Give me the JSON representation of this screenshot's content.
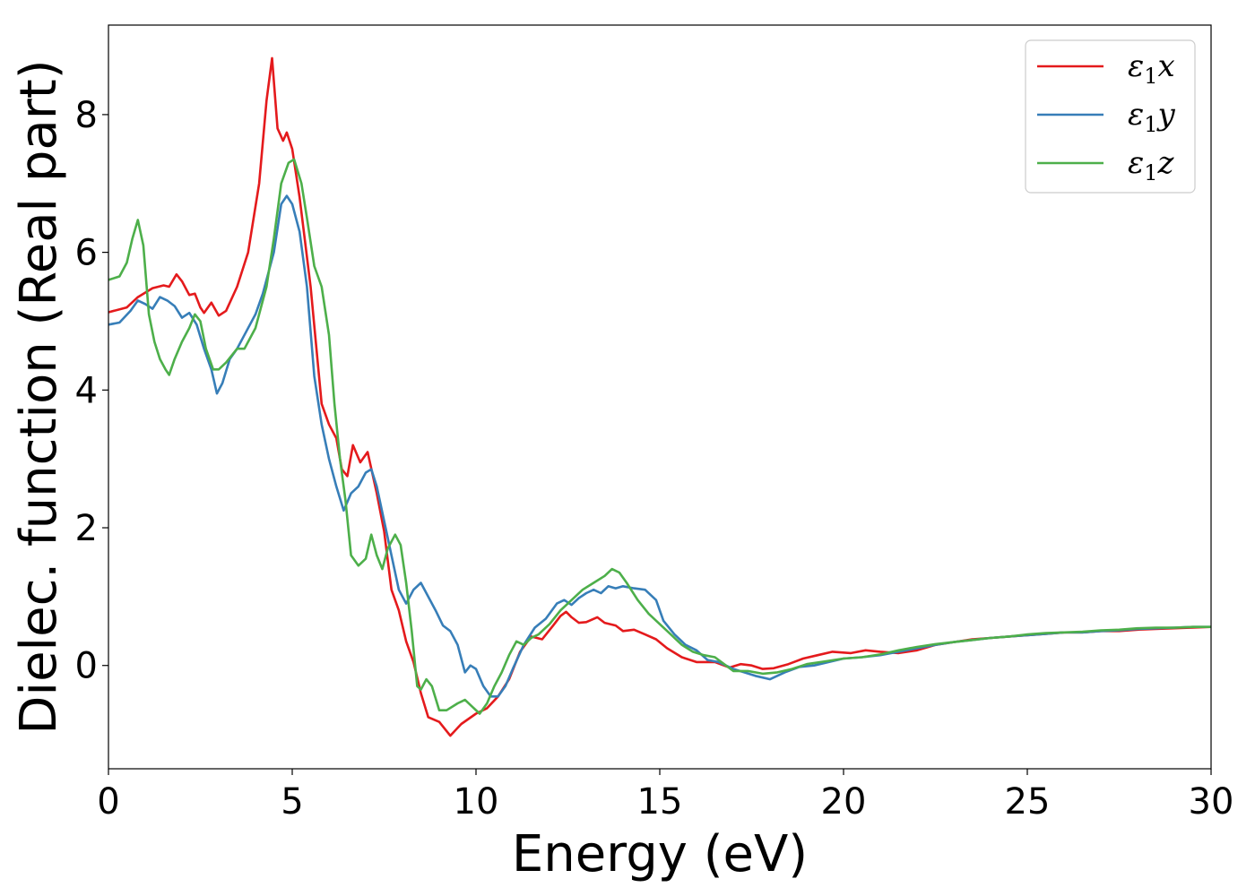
{
  "chart_data": {
    "type": "line",
    "xlabel": "Energy (eV)",
    "ylabel": "Dielec. function (Real part)",
    "xlim": [
      0,
      30
    ],
    "ylim": [
      -1.5,
      9.3
    ],
    "xticks": [
      0,
      5,
      10,
      15,
      20,
      25,
      30
    ],
    "yticks": [
      0,
      2,
      4,
      6,
      8
    ],
    "legend_position": "top-right",
    "series": [
      {
        "name": "ε1x",
        "legend": {
          "sym": "ε",
          "sub": "1",
          "axis": "x"
        },
        "color": "#e41a1c",
        "points": [
          [
            0,
            5.13
          ],
          [
            0.5,
            5.2
          ],
          [
            0.8,
            5.35
          ],
          [
            1.2,
            5.48
          ],
          [
            1.5,
            5.52
          ],
          [
            1.65,
            5.5
          ],
          [
            1.85,
            5.68
          ],
          [
            2.0,
            5.58
          ],
          [
            2.2,
            5.38
          ],
          [
            2.35,
            5.4
          ],
          [
            2.5,
            5.2
          ],
          [
            2.6,
            5.12
          ],
          [
            2.8,
            5.27
          ],
          [
            3.0,
            5.08
          ],
          [
            3.2,
            5.15
          ],
          [
            3.5,
            5.5
          ],
          [
            3.8,
            6.0
          ],
          [
            4.1,
            7.0
          ],
          [
            4.3,
            8.2
          ],
          [
            4.45,
            8.82
          ],
          [
            4.6,
            7.8
          ],
          [
            4.75,
            7.62
          ],
          [
            4.85,
            7.74
          ],
          [
            5.0,
            7.5
          ],
          [
            5.2,
            6.8
          ],
          [
            5.5,
            5.5
          ],
          [
            5.8,
            3.8
          ],
          [
            6.0,
            3.5
          ],
          [
            6.2,
            3.3
          ],
          [
            6.35,
            2.85
          ],
          [
            6.5,
            2.75
          ],
          [
            6.65,
            3.2
          ],
          [
            6.85,
            2.95
          ],
          [
            7.05,
            3.1
          ],
          [
            7.3,
            2.5
          ],
          [
            7.5,
            1.95
          ],
          [
            7.7,
            1.1
          ],
          [
            7.9,
            0.8
          ],
          [
            8.1,
            0.35
          ],
          [
            8.3,
            0.05
          ],
          [
            8.5,
            -0.4
          ],
          [
            8.7,
            -0.75
          ],
          [
            9.0,
            -0.82
          ],
          [
            9.3,
            -1.02
          ],
          [
            9.6,
            -0.85
          ],
          [
            10.0,
            -0.7
          ],
          [
            10.3,
            -0.62
          ],
          [
            10.6,
            -0.45
          ],
          [
            10.9,
            -0.2
          ],
          [
            11.2,
            0.2
          ],
          [
            11.5,
            0.42
          ],
          [
            11.8,
            0.38
          ],
          [
            12.1,
            0.58
          ],
          [
            12.3,
            0.72
          ],
          [
            12.45,
            0.78
          ],
          [
            12.6,
            0.7
          ],
          [
            12.8,
            0.62
          ],
          [
            13.0,
            0.63
          ],
          [
            13.3,
            0.7
          ],
          [
            13.5,
            0.62
          ],
          [
            13.8,
            0.58
          ],
          [
            14.0,
            0.5
          ],
          [
            14.3,
            0.52
          ],
          [
            14.6,
            0.45
          ],
          [
            14.9,
            0.38
          ],
          [
            15.2,
            0.25
          ],
          [
            15.6,
            0.12
          ],
          [
            16.0,
            0.05
          ],
          [
            16.5,
            0.05
          ],
          [
            16.9,
            -0.03
          ],
          [
            17.2,
            0.02
          ],
          [
            17.5,
            0.0
          ],
          [
            17.8,
            -0.05
          ],
          [
            18.1,
            -0.04
          ],
          [
            18.5,
            0.02
          ],
          [
            18.9,
            0.1
          ],
          [
            19.3,
            0.15
          ],
          [
            19.7,
            0.2
          ],
          [
            20.2,
            0.18
          ],
          [
            20.6,
            0.22
          ],
          [
            21.0,
            0.2
          ],
          [
            21.5,
            0.18
          ],
          [
            22.0,
            0.22
          ],
          [
            22.5,
            0.3
          ],
          [
            23.0,
            0.34
          ],
          [
            23.5,
            0.38
          ],
          [
            24.0,
            0.4
          ],
          [
            24.5,
            0.42
          ],
          [
            25.0,
            0.44
          ],
          [
            25.5,
            0.46
          ],
          [
            26.0,
            0.48
          ],
          [
            26.5,
            0.48
          ],
          [
            27.0,
            0.5
          ],
          [
            27.5,
            0.5
          ],
          [
            28.0,
            0.52
          ],
          [
            28.5,
            0.53
          ],
          [
            29.0,
            0.54
          ],
          [
            29.5,
            0.55
          ],
          [
            30.0,
            0.56
          ]
        ]
      },
      {
        "name": "ε1y",
        "legend": {
          "sym": "ε",
          "sub": "1",
          "axis": "y"
        },
        "color": "#377eb8",
        "points": [
          [
            0,
            4.95
          ],
          [
            0.3,
            4.98
          ],
          [
            0.6,
            5.15
          ],
          [
            0.8,
            5.3
          ],
          [
            1.0,
            5.25
          ],
          [
            1.2,
            5.18
          ],
          [
            1.4,
            5.35
          ],
          [
            1.6,
            5.3
          ],
          [
            1.8,
            5.22
          ],
          [
            2.0,
            5.05
          ],
          [
            2.2,
            5.12
          ],
          [
            2.4,
            4.95
          ],
          [
            2.6,
            4.6
          ],
          [
            2.8,
            4.3
          ],
          [
            2.95,
            3.95
          ],
          [
            3.1,
            4.1
          ],
          [
            3.3,
            4.45
          ],
          [
            3.5,
            4.6
          ],
          [
            3.7,
            4.8
          ],
          [
            4.0,
            5.1
          ],
          [
            4.2,
            5.4
          ],
          [
            4.5,
            6.0
          ],
          [
            4.7,
            6.7
          ],
          [
            4.85,
            6.82
          ],
          [
            5.0,
            6.7
          ],
          [
            5.2,
            6.3
          ],
          [
            5.4,
            5.5
          ],
          [
            5.6,
            4.2
          ],
          [
            5.8,
            3.5
          ],
          [
            6.0,
            3.0
          ],
          [
            6.2,
            2.6
          ],
          [
            6.4,
            2.25
          ],
          [
            6.6,
            2.5
          ],
          [
            6.8,
            2.6
          ],
          [
            7.0,
            2.8
          ],
          [
            7.15,
            2.85
          ],
          [
            7.3,
            2.6
          ],
          [
            7.5,
            2.1
          ],
          [
            7.7,
            1.6
          ],
          [
            7.9,
            1.1
          ],
          [
            8.1,
            0.9
          ],
          [
            8.3,
            1.1
          ],
          [
            8.5,
            1.2
          ],
          [
            8.7,
            1.0
          ],
          [
            8.9,
            0.8
          ],
          [
            9.1,
            0.58
          ],
          [
            9.3,
            0.5
          ],
          [
            9.5,
            0.3
          ],
          [
            9.7,
            -0.1
          ],
          [
            9.85,
            0.0
          ],
          [
            10.0,
            -0.05
          ],
          [
            10.2,
            -0.3
          ],
          [
            10.4,
            -0.45
          ],
          [
            10.6,
            -0.45
          ],
          [
            10.8,
            -0.3
          ],
          [
            11.0,
            -0.05
          ],
          [
            11.3,
            0.3
          ],
          [
            11.6,
            0.55
          ],
          [
            11.9,
            0.68
          ],
          [
            12.2,
            0.9
          ],
          [
            12.4,
            0.95
          ],
          [
            12.6,
            0.88
          ],
          [
            12.8,
            0.98
          ],
          [
            13.0,
            1.05
          ],
          [
            13.2,
            1.1
          ],
          [
            13.4,
            1.05
          ],
          [
            13.6,
            1.15
          ],
          [
            13.8,
            1.12
          ],
          [
            14.0,
            1.15
          ],
          [
            14.3,
            1.12
          ],
          [
            14.6,
            1.1
          ],
          [
            14.9,
            0.95
          ],
          [
            15.1,
            0.65
          ],
          [
            15.4,
            0.45
          ],
          [
            15.7,
            0.3
          ],
          [
            16.0,
            0.22
          ],
          [
            16.3,
            0.08
          ],
          [
            16.6,
            0.05
          ],
          [
            17.0,
            -0.05
          ],
          [
            17.3,
            -0.1
          ],
          [
            17.6,
            -0.15
          ],
          [
            18.0,
            -0.2
          ],
          [
            18.4,
            -0.1
          ],
          [
            18.8,
            -0.02
          ],
          [
            19.2,
            0.0
          ],
          [
            19.6,
            0.05
          ],
          [
            20.0,
            0.1
          ],
          [
            20.5,
            0.12
          ],
          [
            21.0,
            0.15
          ],
          [
            21.5,
            0.2
          ],
          [
            22.0,
            0.25
          ],
          [
            22.5,
            0.3
          ],
          [
            23.0,
            0.34
          ],
          [
            23.5,
            0.37
          ],
          [
            24.0,
            0.4
          ],
          [
            24.5,
            0.42
          ],
          [
            25.0,
            0.44
          ],
          [
            25.5,
            0.46
          ],
          [
            26.0,
            0.48
          ],
          [
            26.5,
            0.48
          ],
          [
            27.0,
            0.5
          ],
          [
            27.5,
            0.51
          ],
          [
            28.0,
            0.53
          ],
          [
            28.5,
            0.54
          ],
          [
            29.0,
            0.55
          ],
          [
            29.5,
            0.56
          ],
          [
            30.0,
            0.56
          ]
        ]
      },
      {
        "name": "ε1z",
        "legend": {
          "sym": "ε",
          "sub": "1",
          "axis": "z"
        },
        "color": "#4daf4a",
        "points": [
          [
            0,
            5.6
          ],
          [
            0.3,
            5.65
          ],
          [
            0.5,
            5.85
          ],
          [
            0.65,
            6.2
          ],
          [
            0.8,
            6.47
          ],
          [
            0.95,
            6.1
          ],
          [
            1.1,
            5.1
          ],
          [
            1.25,
            4.7
          ],
          [
            1.4,
            4.45
          ],
          [
            1.55,
            4.3
          ],
          [
            1.65,
            4.22
          ],
          [
            1.8,
            4.45
          ],
          [
            2.0,
            4.7
          ],
          [
            2.2,
            4.9
          ],
          [
            2.35,
            5.1
          ],
          [
            2.5,
            5.0
          ],
          [
            2.65,
            4.6
          ],
          [
            2.85,
            4.3
          ],
          [
            3.0,
            4.3
          ],
          [
            3.2,
            4.4
          ],
          [
            3.5,
            4.6
          ],
          [
            3.7,
            4.6
          ],
          [
            4.0,
            4.9
          ],
          [
            4.3,
            5.5
          ],
          [
            4.5,
            6.2
          ],
          [
            4.7,
            7.0
          ],
          [
            4.9,
            7.3
          ],
          [
            5.05,
            7.35
          ],
          [
            5.25,
            7.0
          ],
          [
            5.4,
            6.5
          ],
          [
            5.6,
            5.8
          ],
          [
            5.8,
            5.5
          ],
          [
            6.0,
            4.8
          ],
          [
            6.15,
            3.8
          ],
          [
            6.3,
            3.0
          ],
          [
            6.45,
            2.4
          ],
          [
            6.6,
            1.6
          ],
          [
            6.8,
            1.45
          ],
          [
            7.0,
            1.55
          ],
          [
            7.15,
            1.9
          ],
          [
            7.3,
            1.6
          ],
          [
            7.45,
            1.4
          ],
          [
            7.6,
            1.7
          ],
          [
            7.8,
            1.9
          ],
          [
            7.95,
            1.75
          ],
          [
            8.1,
            1.2
          ],
          [
            8.25,
            0.5
          ],
          [
            8.4,
            -0.3
          ],
          [
            8.5,
            -0.35
          ],
          [
            8.65,
            -0.2
          ],
          [
            8.8,
            -0.3
          ],
          [
            9.0,
            -0.65
          ],
          [
            9.2,
            -0.65
          ],
          [
            9.5,
            -0.55
          ],
          [
            9.7,
            -0.5
          ],
          [
            9.9,
            -0.6
          ],
          [
            10.1,
            -0.7
          ],
          [
            10.3,
            -0.55
          ],
          [
            10.5,
            -0.3
          ],
          [
            10.7,
            -0.1
          ],
          [
            10.9,
            0.15
          ],
          [
            11.1,
            0.35
          ],
          [
            11.3,
            0.3
          ],
          [
            11.5,
            0.4
          ],
          [
            11.7,
            0.45
          ],
          [
            12.0,
            0.6
          ],
          [
            12.3,
            0.8
          ],
          [
            12.6,
            0.95
          ],
          [
            12.9,
            1.1
          ],
          [
            13.2,
            1.2
          ],
          [
            13.5,
            1.3
          ],
          [
            13.7,
            1.4
          ],
          [
            13.9,
            1.35
          ],
          [
            14.1,
            1.2
          ],
          [
            14.4,
            0.95
          ],
          [
            14.7,
            0.75
          ],
          [
            15.0,
            0.6
          ],
          [
            15.3,
            0.45
          ],
          [
            15.6,
            0.3
          ],
          [
            15.9,
            0.2
          ],
          [
            16.2,
            0.15
          ],
          [
            16.5,
            0.12
          ],
          [
            16.8,
            0.0
          ],
          [
            17.0,
            -0.08
          ],
          [
            17.4,
            -0.08
          ],
          [
            17.8,
            -0.12
          ],
          [
            18.2,
            -0.1
          ],
          [
            18.6,
            -0.05
          ],
          [
            19.0,
            0.02
          ],
          [
            19.5,
            0.06
          ],
          [
            20.0,
            0.1
          ],
          [
            20.5,
            0.12
          ],
          [
            21.0,
            0.16
          ],
          [
            21.5,
            0.22
          ],
          [
            22.0,
            0.27
          ],
          [
            22.5,
            0.31
          ],
          [
            23.0,
            0.34
          ],
          [
            23.5,
            0.37
          ],
          [
            24.0,
            0.4
          ],
          [
            24.5,
            0.42
          ],
          [
            25.0,
            0.45
          ],
          [
            25.5,
            0.47
          ],
          [
            26.0,
            0.48
          ],
          [
            26.5,
            0.49
          ],
          [
            27.0,
            0.51
          ],
          [
            27.5,
            0.52
          ],
          [
            28.0,
            0.54
          ],
          [
            28.5,
            0.55
          ],
          [
            29.0,
            0.55
          ],
          [
            29.5,
            0.56
          ],
          [
            30.0,
            0.56
          ]
        ]
      }
    ]
  }
}
